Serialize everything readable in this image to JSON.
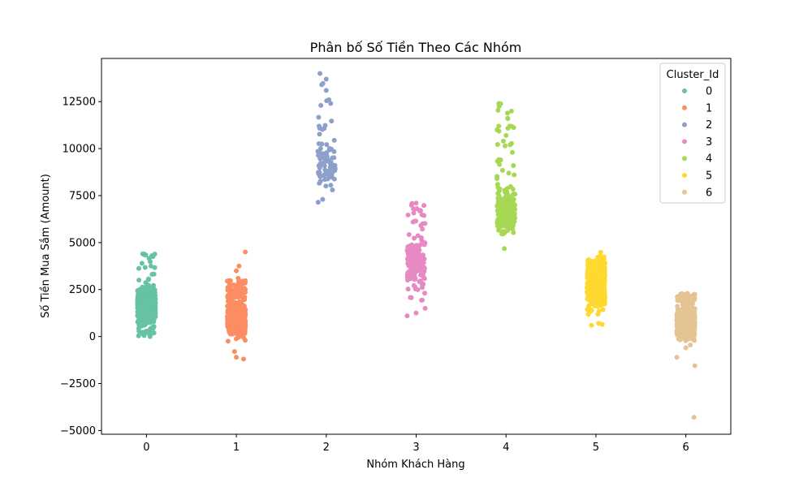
{
  "chart_data": {
    "type": "scatter",
    "title": "Phân bố Số Tiền Theo Các Nhóm",
    "xlabel": "Nhóm Khách Hàng",
    "ylabel": "Số Tiền Mua Sắm (Amount)",
    "categories": [
      "0",
      "1",
      "2",
      "3",
      "4",
      "5",
      "6"
    ],
    "xlim": [
      -0.5,
      6.5
    ],
    "ylim": [
      -5200,
      14800
    ],
    "yticks": [
      -5000,
      -2500,
      0,
      2500,
      5000,
      7500,
      10000,
      12500
    ],
    "ytick_labels": [
      "−5000",
      "−2500",
      "0",
      "2500",
      "5000",
      "7500",
      "10000",
      "12500"
    ],
    "grid": false,
    "legend": {
      "title": "Cluster_Id",
      "placement": "top-right"
    },
    "series": [
      {
        "name": "0",
        "color": "#66c2a5",
        "x": 0,
        "n": 600,
        "core": [
          300,
          3000
        ],
        "tail": [
          [
            0.0,
            4400
          ]
        ],
        "outliers": [
          [
            0.06,
            4300
          ],
          [
            -0.02,
            4350
          ],
          [
            0.03,
            4150
          ],
          [
            -0.05,
            3900
          ],
          [
            0.05,
            3750
          ],
          [
            0.04,
            0
          ]
        ]
      },
      {
        "name": "1",
        "color": "#fc8d62",
        "x": 1,
        "n": 700,
        "core": [
          -200,
          2100
        ],
        "tail": [
          [
            2100,
            3000
          ]
        ],
        "outliers": [
          [
            0.1,
            4500
          ],
          [
            0.03,
            3750
          ],
          [
            0.0,
            3500
          ],
          [
            0.02,
            3100
          ],
          [
            -0.1,
            2950
          ],
          [
            0.0,
            2700
          ],
          [
            0.05,
            2600
          ],
          [
            -0.02,
            -800
          ],
          [
            0.0,
            -1100
          ],
          [
            0.08,
            -1200
          ]
        ]
      },
      {
        "name": "2",
        "color": "#8da0cb",
        "x": 2,
        "n": 80,
        "core": [
          7100,
          11000
        ],
        "tail": [
          [
            11000,
            14000
          ]
        ],
        "outliers": [
          [
            -0.07,
            14000
          ],
          [
            0.0,
            13700
          ],
          [
            -0.05,
            13400
          ],
          [
            0.0,
            13100
          ],
          [
            0.03,
            12600
          ],
          [
            -0.06,
            12300
          ],
          [
            0.05,
            12400
          ],
          [
            -0.08,
            11200
          ],
          [
            -0.09,
            7150
          ],
          [
            -0.04,
            7300
          ]
        ]
      },
      {
        "name": "3",
        "color": "#e78ac3",
        "x": 3,
        "n": 160,
        "core": [
          1500,
          6000
        ],
        "tail": [
          [
            6000,
            7100
          ]
        ],
        "outliers": [
          [
            0.0,
            7100
          ],
          [
            -0.03,
            6800
          ],
          [
            0.05,
            6700
          ],
          [
            -0.1,
            1100
          ],
          [
            0.0,
            1250
          ],
          [
            0.1,
            1500
          ]
        ]
      },
      {
        "name": "4",
        "color": "#a6d854",
        "x": 4,
        "n": 200,
        "core": [
          4600,
          8500
        ],
        "tail": [
          [
            8500,
            12400
          ]
        ],
        "outliers": [
          [
            -0.08,
            12400
          ],
          [
            0.06,
            12000
          ],
          [
            0.02,
            11600
          ],
          [
            0.04,
            11200
          ],
          [
            -0.1,
            11000
          ],
          [
            0.0,
            10700
          ],
          [
            -0.03,
            10400
          ],
          [
            0.07,
            9800
          ],
          [
            -0.06,
            9400
          ],
          [
            0.03,
            8700
          ],
          [
            0.09,
            8600
          ],
          [
            -0.1,
            8400
          ]
        ]
      },
      {
        "name": "5",
        "color": "#ffd92f",
        "x": 5,
        "n": 500,
        "core": [
          900,
          4800
        ],
        "tail": [],
        "outliers": [
          [
            -0.05,
            600
          ],
          [
            0.03,
            700
          ],
          [
            0.07,
            650
          ]
        ]
      },
      {
        "name": "6",
        "color": "#e5c494",
        "x": 6,
        "n": 700,
        "core": [
          -400,
          1900
        ],
        "tail": [
          [
            1900,
            2300
          ]
        ],
        "outliers": [
          [
            0.0,
            2250
          ],
          [
            0.08,
            2100
          ],
          [
            -0.03,
            2050
          ],
          [
            -0.1,
            -1100
          ],
          [
            0.0,
            -600
          ],
          [
            0.05,
            -450
          ],
          [
            0.1,
            -1550
          ],
          [
            0.09,
            -4300
          ]
        ]
      }
    ]
  }
}
